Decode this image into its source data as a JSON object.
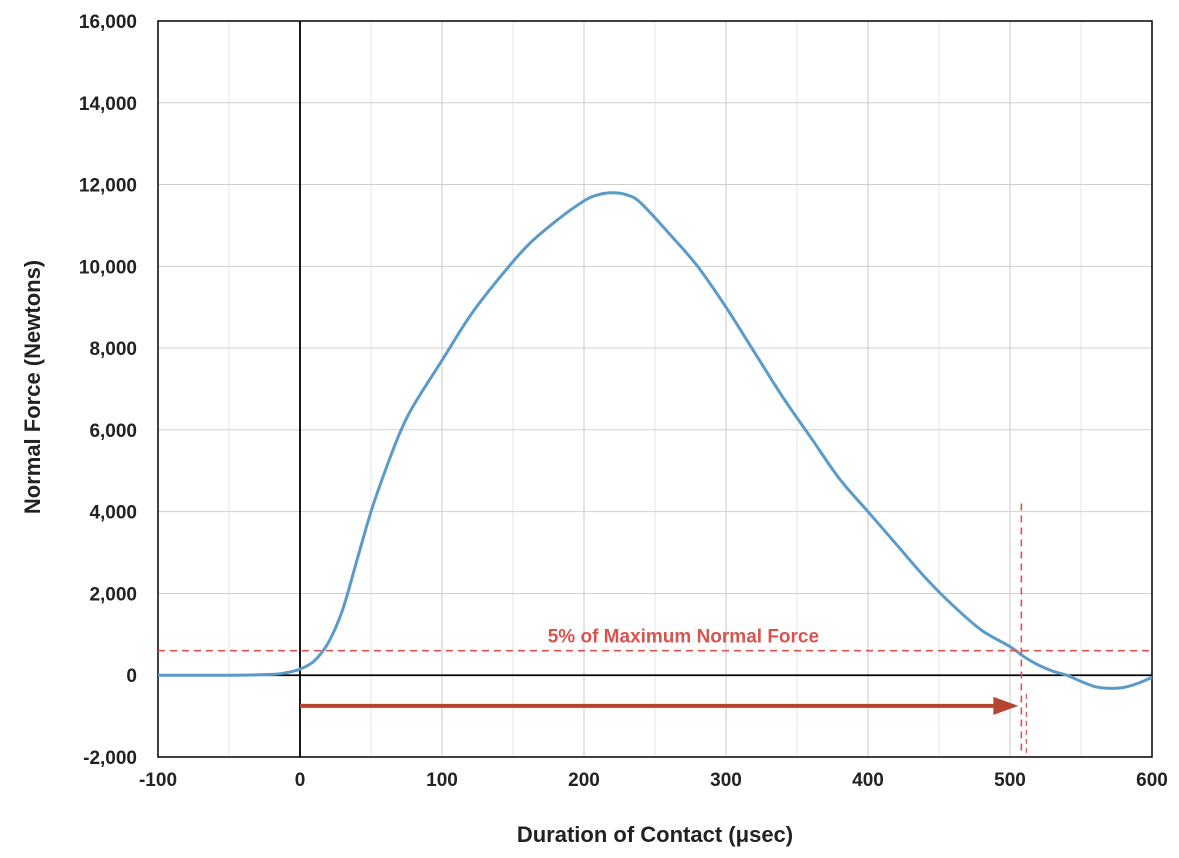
{
  "chart_data": {
    "type": "line",
    "xlabel": "Duration of Contact  (",
    "xlabel_unit": "μsec",
    "xlabel_close": ")",
    "ylabel": "Normal Force (Newtons)",
    "xlim": [
      -100,
      600
    ],
    "ylim": [
      -2000,
      16000
    ],
    "x_ticks": [
      -100,
      0,
      100,
      200,
      300,
      400,
      500,
      600
    ],
    "x_tick_labels": [
      "-100",
      "0",
      "100",
      "200",
      "300",
      "400",
      "500",
      "600"
    ],
    "y_ticks": [
      -2000,
      0,
      2000,
      4000,
      6000,
      8000,
      10000,
      12000,
      14000,
      16000
    ],
    "y_tick_labels": [
      "-2,000",
      "0",
      "2,000",
      "4,000",
      "6,000",
      "8,000",
      "10,000",
      "12,000",
      "14,000",
      "16,000"
    ],
    "x_minor_step": 50,
    "grid": true,
    "series": [
      {
        "color": "#5b9bc9",
        "x": [
          -100,
          -50,
          -20,
          -10,
          0,
          10,
          20,
          30,
          40,
          50,
          60,
          70,
          80,
          100,
          120,
          140,
          160,
          180,
          200,
          210,
          220,
          230,
          240,
          260,
          280,
          300,
          320,
          340,
          360,
          380,
          400,
          420,
          440,
          460,
          480,
          500,
          510,
          520,
          530,
          540,
          550,
          560,
          570,
          580,
          590,
          600
        ],
        "y": [
          0,
          0,
          20,
          60,
          150,
          350,
          800,
          1600,
          2800,
          4000,
          5000,
          5900,
          6600,
          7700,
          8800,
          9700,
          10500,
          11100,
          11600,
          11750,
          11800,
          11750,
          11550,
          10800,
          10000,
          9000,
          7900,
          6800,
          5800,
          4800,
          4000,
          3200,
          2400,
          1700,
          1100,
          700,
          450,
          250,
          100,
          0,
          -150,
          -280,
          -320,
          -300,
          -200,
          -50
        ]
      }
    ],
    "threshold": {
      "label": "5% of Maximum Normal Force",
      "y": 600,
      "x_cross": 508,
      "color": "#d9534f"
    },
    "duration_arrow": {
      "x_start": 0,
      "x_end": 508,
      "y": -750,
      "color": "#b5452e"
    }
  }
}
